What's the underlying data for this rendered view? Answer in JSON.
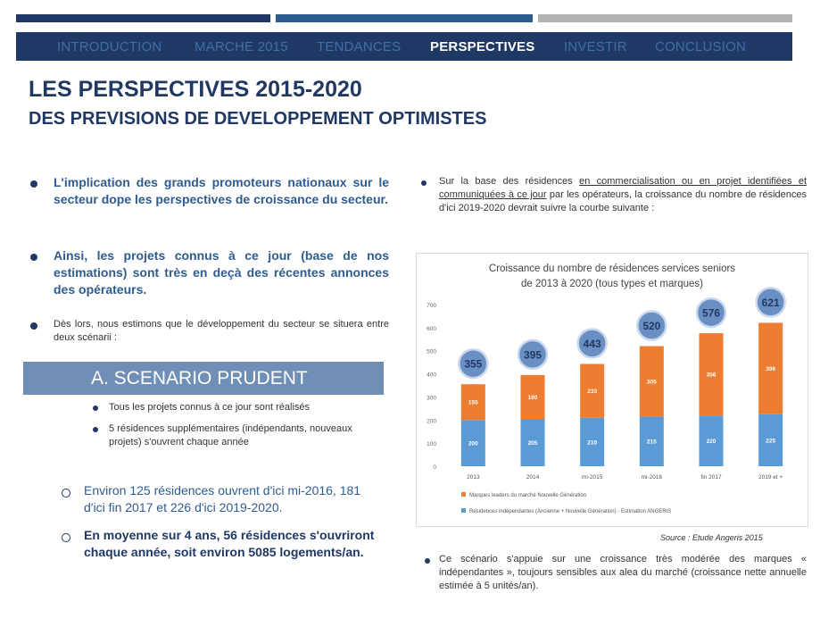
{
  "nav": {
    "items": [
      "INTRODUCTION",
      "MARCHE 2015",
      "TENDANCES",
      "PERSPECTIVES",
      "INVESTIR",
      "CONCLUSION"
    ],
    "active_index": 3
  },
  "heading": {
    "title": "LES PERSPECTIVES 2015-2020",
    "subtitle": "DES PREVISIONS DE DEVELOPPEMENT OPTIMISTES"
  },
  "left": {
    "bullet1": "L'implication des grands promoteurs nationaux sur le secteur dope les perspectives de croissance du secteur.",
    "bullet2": "Ainsi, les projets connus à ce jour (base de nos estimations) sont très en deçà des récentes annonces des opérateurs.",
    "bullet3": "Dès lors, nous estimons que le développement du secteur se situera entre deux scénarii :",
    "scenario_title": "A. SCENARIO PRUDENT",
    "sub1": "Tous les projets connus à ce jour sont réalisés",
    "sub2": "5 résidences supplémentaires (indépendants, nouveaux projets) s'ouvrent chaque année",
    "o1": "Environ 125 résidences ouvrent d'ici mi-2016, 181 d'ici fin  2017 et 226 d'ici 2019-2020.",
    "o2": "En moyenne sur 4 ans, 56 résidences s'ouvriront chaque année, soit environ 5085 logements/an."
  },
  "right": {
    "intro_pre": "Sur la base des résidences ",
    "intro_underlined": "en commercialisation ou en projet identifiées et communiquées à ce jour",
    "intro_post": " par les opérateurs, la croissance du nombre de résidences d'ici 2019-2020 devrait suivre la courbe suivante :",
    "source": "Source : Etude Angeris 2015",
    "bottom_bullet": "Ce scénario s'appuie sur une croissance très modérée des marques « indépendantes », toujours sensibles aux alea du marché (croissance nette annuelle estimée à 5 unités/an)."
  },
  "chart_data": {
    "type": "bar",
    "stacked": true,
    "title": "Croissance du nombre de résidences services seniors de 2013 à 2020 (tous types et marques)",
    "categories": [
      "2013",
      "2014",
      "mi-2015",
      "mi-2016",
      "fin 2017",
      "2019 et +"
    ],
    "series": [
      {
        "name": "Résidences indépendantes (Ancienne + Nouvelle Génération) - Estimation ANGERIS",
        "color": "#5b9bd5",
        "values": [
          200,
          205,
          210,
          215,
          220,
          225
        ]
      },
      {
        "name": "Marques leaders du marché Nouvelle Génération",
        "color": "#ed7d31",
        "values": [
          155,
          190,
          233,
          305,
          356,
          396
        ]
      }
    ],
    "totals": [
      355,
      395,
      443,
      520,
      576,
      621
    ],
    "ylim": [
      0,
      700
    ],
    "yticks": [
      0,
      100,
      200,
      300,
      400,
      500,
      600,
      700
    ],
    "grid": false,
    "legend": "bottom"
  },
  "colors": {
    "navy": "#1f3864",
    "blue": "#2e5c91",
    "scenario": "#6f8fb7",
    "bar_blue": "#5b9bd5",
    "bar_orange": "#ed7d31"
  }
}
